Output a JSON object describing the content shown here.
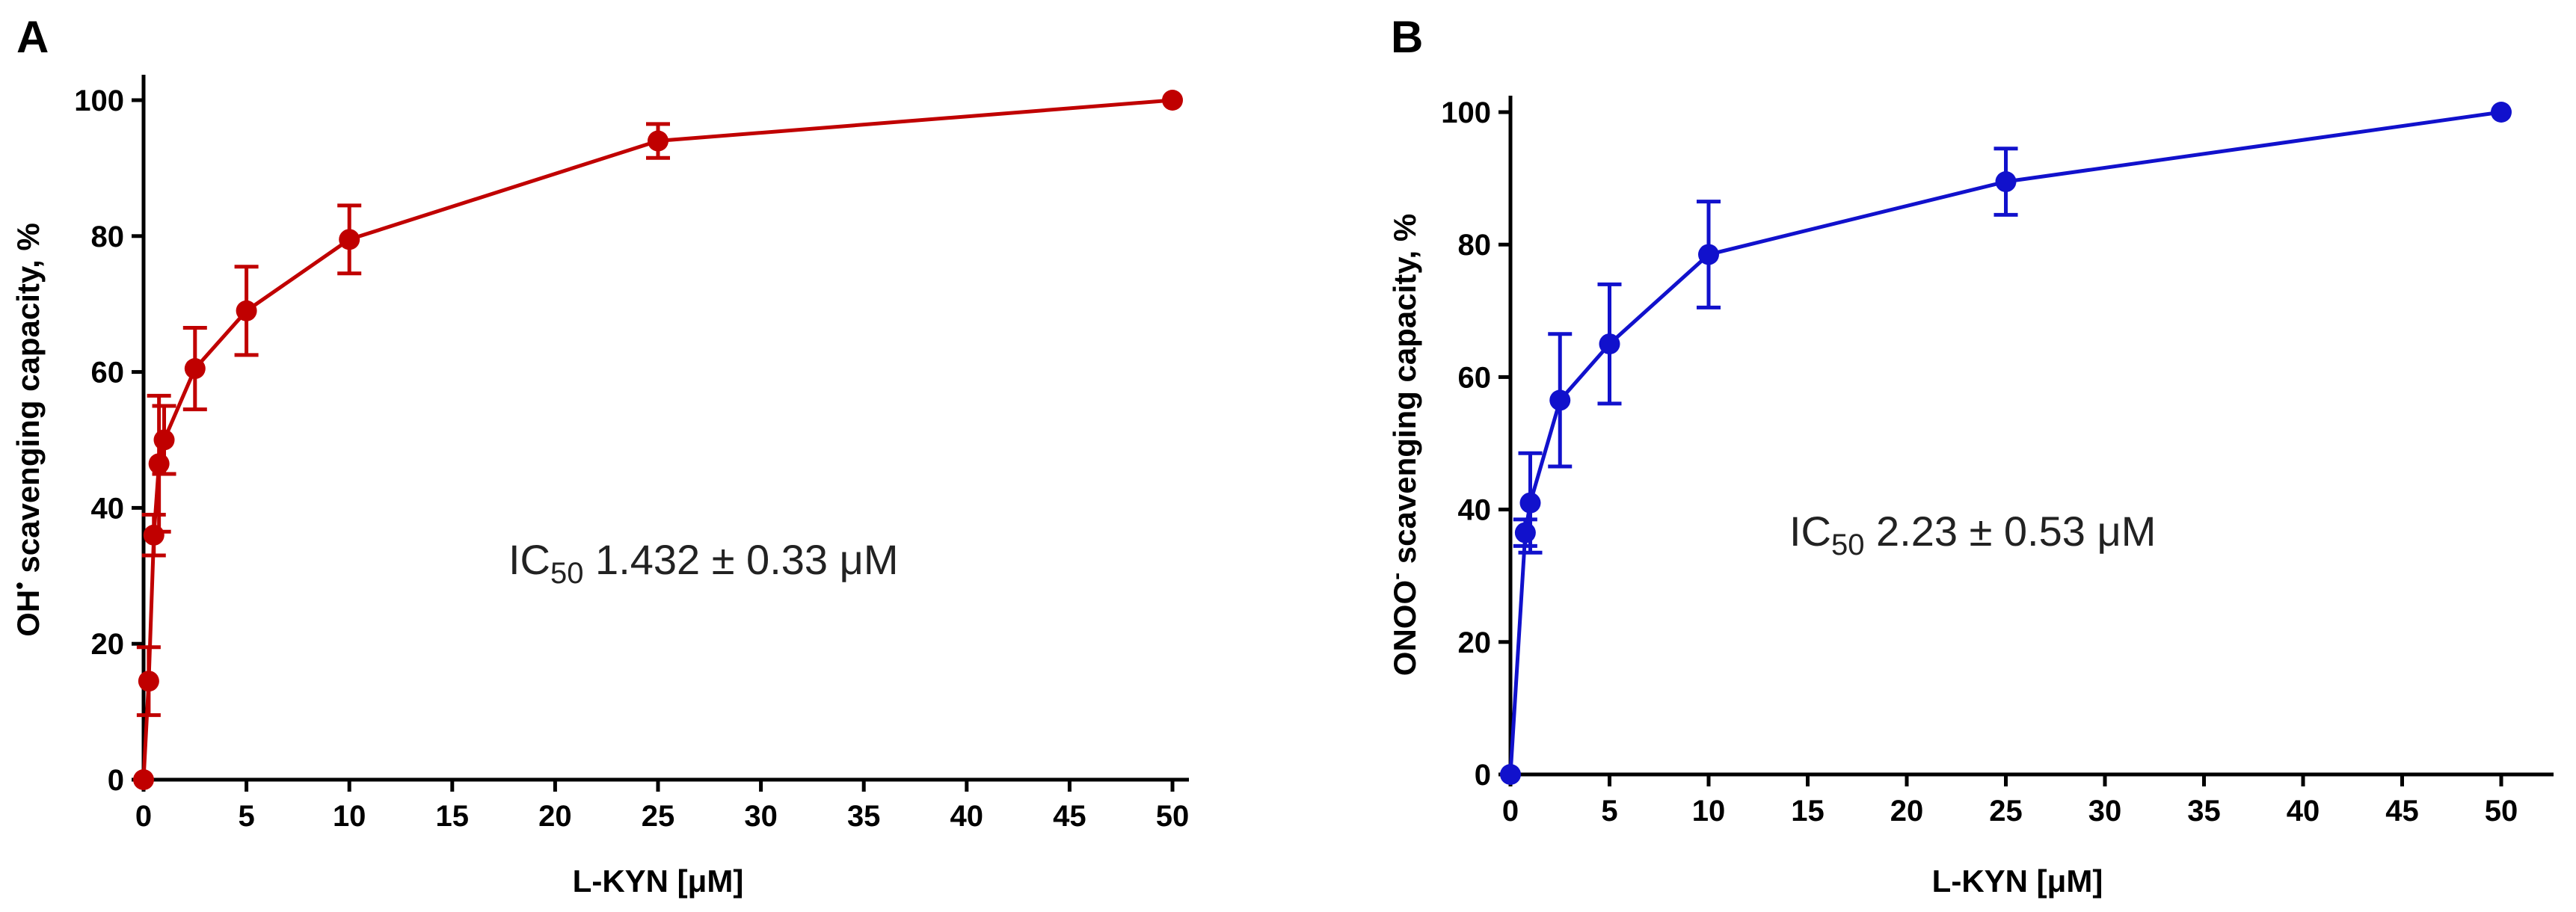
{
  "chart_data": [
    {
      "type": "line",
      "panel_label": "A",
      "title": "",
      "xlabel": "L-KYN [μM]",
      "ylabel": {
        "base": "OH",
        "super": "•",
        "rest": " scavenging capacity, %"
      },
      "xlim": [
        0,
        50
      ],
      "ylim": [
        0,
        100
      ],
      "xticks": [
        0,
        5,
        10,
        15,
        20,
        25,
        30,
        35,
        40,
        45,
        50
      ],
      "yticks": [
        0,
        20,
        40,
        60,
        80,
        100
      ],
      "xtick_labels": [
        "0",
        "5",
        "10",
        "15",
        "20",
        "25",
        "30",
        "35",
        "40",
        "45",
        "50"
      ],
      "ytick_labels": [
        "0",
        "20",
        "40",
        "60",
        "80",
        "100"
      ],
      "color": "#c00000",
      "series": [
        {
          "name": "OH scavenging",
          "x": [
            0,
            0.25,
            0.5,
            0.75,
            1,
            2.5,
            5,
            10,
            25,
            50
          ],
          "y": [
            0,
            14.5,
            36,
            46.5,
            50,
            60.5,
            69,
            79.5,
            94,
            100
          ],
          "err": [
            0,
            5,
            3,
            10,
            5,
            6,
            6.5,
            5,
            2.5,
            0
          ]
        }
      ],
      "annotation": {
        "pre": "IC",
        "sub": "50",
        "post": " 1.432 ± 0.33 μM"
      }
    },
    {
      "type": "line",
      "panel_label": "B",
      "title": "",
      "xlabel": "L-KYN [μM]",
      "ylabel": {
        "base": "ONOO",
        "super": "-",
        "rest": " scavenging capacity, %"
      },
      "xlim": [
        0,
        50
      ],
      "ylim": [
        0,
        100
      ],
      "xticks": [
        0,
        5,
        10,
        15,
        20,
        25,
        30,
        35,
        40,
        45,
        50
      ],
      "yticks": [
        0,
        20,
        40,
        60,
        80,
        100
      ],
      "xtick_labels": [
        "0",
        "5",
        "10",
        "15",
        "20",
        "25",
        "30",
        "35",
        "40",
        "45",
        "50"
      ],
      "ytick_labels": [
        "0",
        "20",
        "40",
        "60",
        "80",
        "100"
      ],
      "color": "#1111cc",
      "series": [
        {
          "name": "ONOO scavenging",
          "x": [
            0,
            0.75,
            1,
            2.5,
            5,
            10,
            25,
            50
          ],
          "y": [
            0,
            36.5,
            41,
            56.5,
            65,
            78.5,
            89.5,
            100
          ],
          "err": [
            0,
            2,
            7.5,
            10,
            9,
            8,
            5,
            0
          ]
        }
      ],
      "annotation": {
        "pre": "IC",
        "sub": "50",
        "post": " 2.23 ± 0.53 μM"
      }
    }
  ]
}
